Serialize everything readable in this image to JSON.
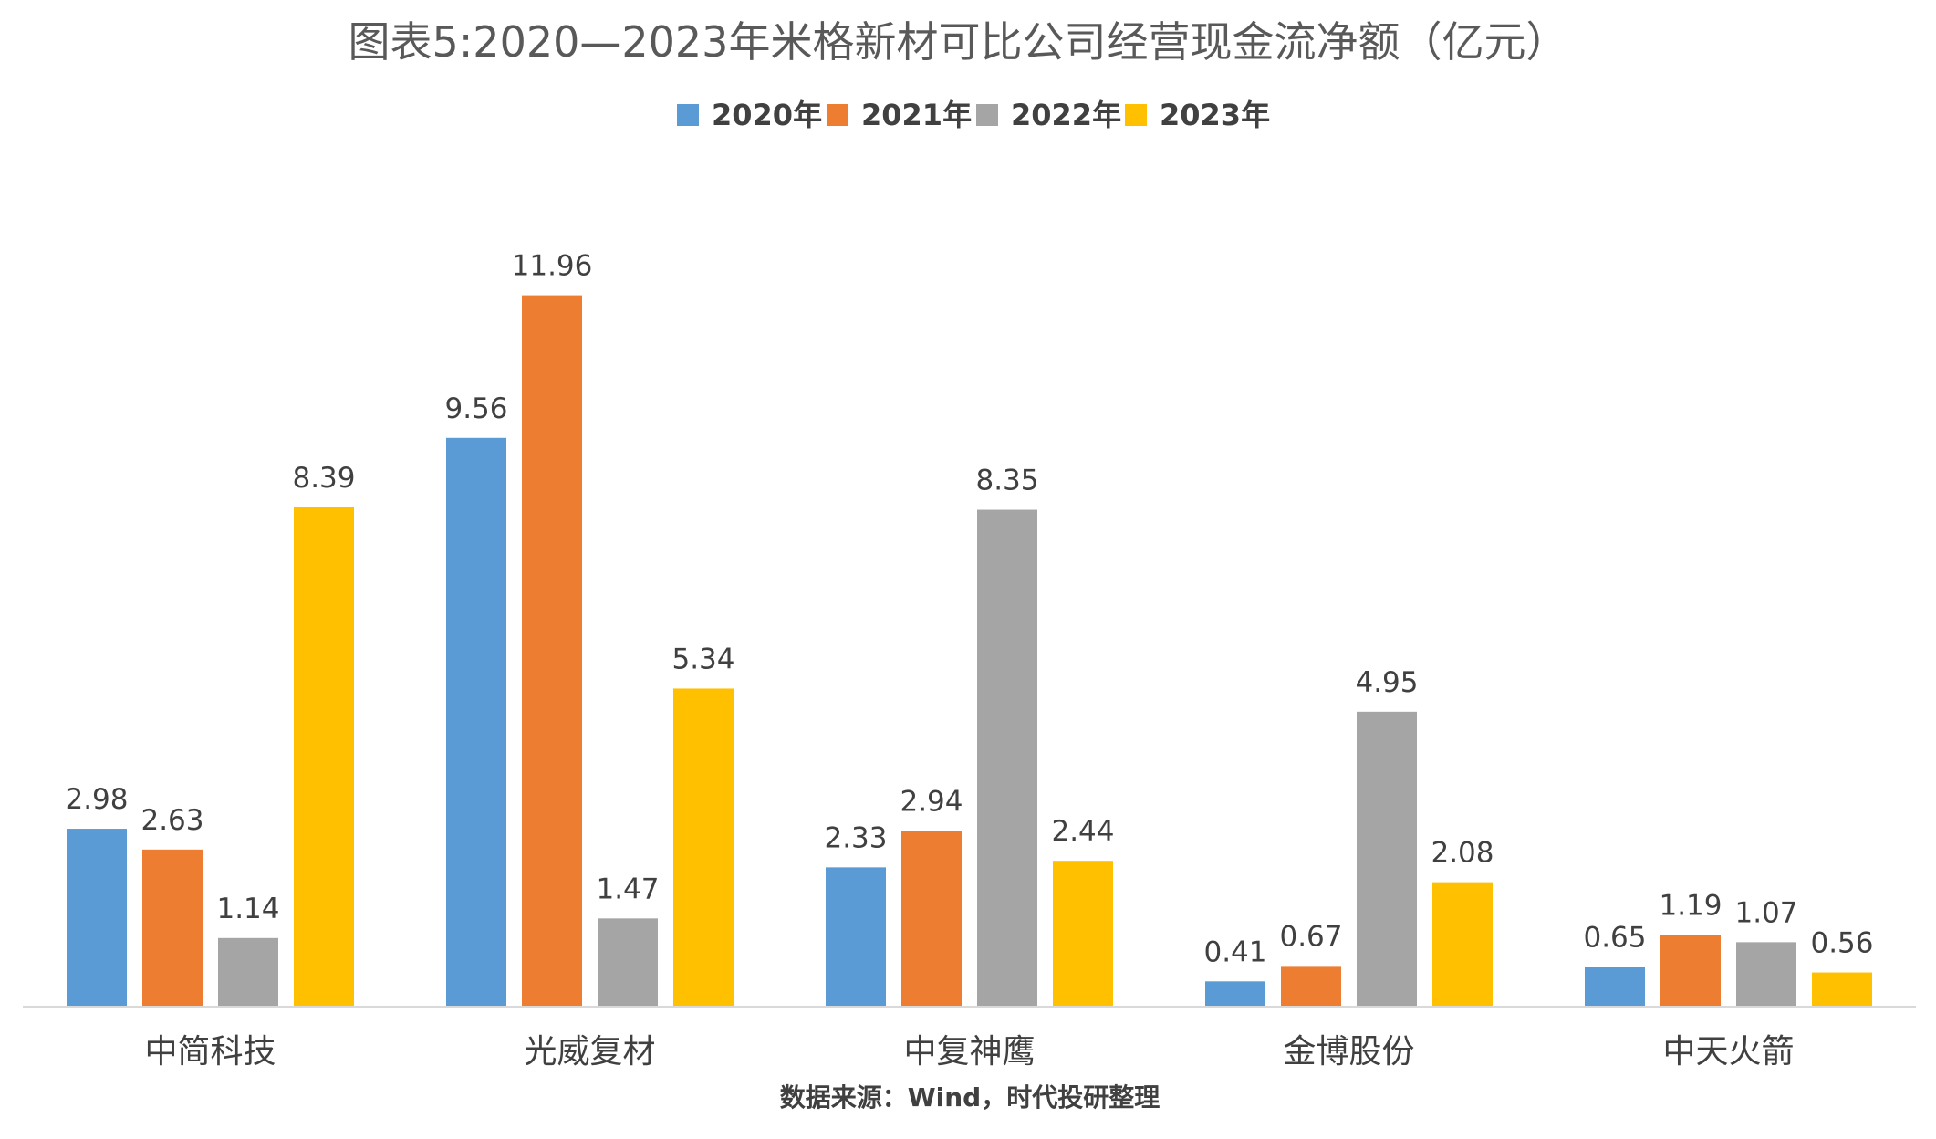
{
  "chart_data": {
    "type": "bar",
    "title": "图表5:2020—2023年米格新材可比公司经营现金流净额（亿元）",
    "categories": [
      "中简科技",
      "光威复材",
      "中复神鹰",
      "金博股份",
      "中天火箭"
    ],
    "series": [
      {
        "name": "2020年",
        "color": "#5B9BD5",
        "values": [
          2.98,
          9.56,
          2.33,
          0.41,
          0.65
        ]
      },
      {
        "name": "2021年",
        "color": "#ED7D31",
        "values": [
          2.63,
          11.96,
          2.94,
          0.67,
          1.19
        ]
      },
      {
        "name": "2022年",
        "color": "#A5A5A5",
        "values": [
          1.14,
          1.47,
          8.35,
          4.95,
          1.07
        ]
      },
      {
        "name": "2023年",
        "color": "#FFC000",
        "values": [
          8.39,
          5.34,
          2.44,
          2.08,
          0.56
        ]
      }
    ],
    "ylim": [
      0,
      12
    ],
    "grid": false,
    "legend": "top-center",
    "data_labels": true,
    "source": "数据来源：Wind，时代投研整理"
  }
}
